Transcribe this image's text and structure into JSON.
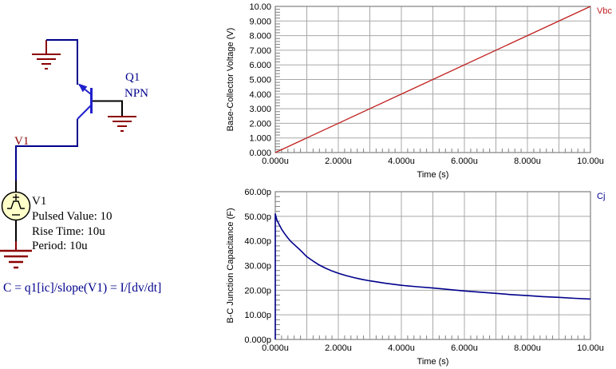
{
  "app": {
    "background": "#FFFFFF"
  },
  "schematic": {
    "transistor_ref": "Q1",
    "transistor_type": "NPN",
    "wire_label": "V1",
    "source_name": "V1",
    "source_param_1": "Pulsed Value: 10",
    "source_param_2": "Rise Time: 10u",
    "source_param_3": "Period: 10u",
    "formula": "C = q1[ic]/slope(V1) = I/[dv/dt]",
    "colors": {
      "wire": "#00008B",
      "device": "#2121CC",
      "ground": "#8B0000",
      "source_fill": "#FFFFC9",
      "designator_text": "#00008B",
      "wire_label_text": "#8B0000",
      "param_text": "#000000"
    }
  },
  "chart_data": [
    {
      "type": "line",
      "title": "",
      "xlabel": "Time (s)",
      "ylabel": "Base-Collector Voltage (V)",
      "x_unit": "us",
      "y_unit": "V",
      "xlim": [
        0,
        10
      ],
      "ylim": [
        0,
        10
      ],
      "x_tick_values": [
        0,
        2,
        4,
        6,
        8,
        10
      ],
      "x_tick_labels": [
        "0.000u",
        "2.000u",
        "4.000u",
        "6.000u",
        "8.000u",
        "10.00u"
      ],
      "y_tick_values": [
        0,
        1,
        2,
        3,
        4,
        5,
        6,
        7,
        8,
        9,
        10
      ],
      "y_tick_labels": [
        "0.000",
        "1.000",
        "2.000",
        "3.000",
        "4.000",
        "5.000",
        "6.000",
        "7.000",
        "8.000",
        "9.000",
        "10.00"
      ],
      "grid": true,
      "grid_x_step": 1,
      "grid_y_step": 1,
      "minor_x_step": 0.2,
      "minor_y_step": 0.2,
      "legend_position": "top-right-outside",
      "legend": [
        {
          "label": "Vbc",
          "color": "#C02020"
        }
      ],
      "series": [
        {
          "name": "Vbc",
          "color": "#C02020",
          "points": [
            [
              0,
              0
            ],
            [
              10,
              10
            ]
          ]
        }
      ]
    },
    {
      "type": "line",
      "title": "",
      "xlabel": "Time (s)",
      "ylabel": "B-C Junction Capacitance (F)",
      "x_unit": "us",
      "y_unit": "pF",
      "xlim": [
        0,
        10
      ],
      "ylim": [
        0,
        60
      ],
      "x_tick_values": [
        0,
        2,
        4,
        6,
        8,
        10
      ],
      "x_tick_labels": [
        "0.000u",
        "2.000u",
        "4.000u",
        "6.000u",
        "8.000u",
        "10.00u"
      ],
      "y_tick_values": [
        0,
        10,
        20,
        30,
        40,
        50,
        60
      ],
      "y_tick_labels": [
        "0.000p",
        "10.00p",
        "20.00p",
        "30.00p",
        "40.00p",
        "50.00p",
        "60.00p"
      ],
      "grid": true,
      "grid_x_step": 1,
      "grid_y_step": 10,
      "minor_x_step": 0.2,
      "minor_y_step": 2,
      "legend_position": "top-right-outside",
      "legend": [
        {
          "label": "Cj",
          "color": "#00008B"
        }
      ],
      "series": [
        {
          "name": "Cj",
          "color": "#00008B",
          "points": [
            [
              0,
              0
            ],
            [
              0,
              51
            ],
            [
              0.05,
              48.5
            ],
            [
              0.1,
              47.2
            ],
            [
              0.2,
              44.8
            ],
            [
              0.3,
              42.9
            ],
            [
              0.4,
              41.2
            ],
            [
              0.5,
              39.7
            ],
            [
              0.65,
              37.9
            ],
            [
              0.8,
              36.2
            ],
            [
              1.0,
              33.6
            ],
            [
              1.2,
              31.8
            ],
            [
              1.4,
              30.2
            ],
            [
              1.6,
              28.9
            ],
            [
              1.8,
              27.8
            ],
            [
              2.0,
              26.9
            ],
            [
              2.25,
              25.9
            ],
            [
              2.5,
              25.1
            ],
            [
              2.75,
              24.4
            ],
            [
              3.0,
              23.8
            ],
            [
              3.5,
              22.8
            ],
            [
              4.0,
              22.0
            ],
            [
              4.5,
              21.4
            ],
            [
              5.0,
              20.9
            ],
            [
              5.5,
              20.3
            ],
            [
              6.0,
              19.7
            ],
            [
              6.5,
              19.2
            ],
            [
              7.0,
              18.7
            ],
            [
              7.5,
              18.2
            ],
            [
              8.0,
              17.8
            ],
            [
              8.5,
              17.4
            ],
            [
              9.0,
              17.1
            ],
            [
              9.5,
              16.7
            ],
            [
              10.0,
              16.4
            ]
          ]
        }
      ]
    }
  ]
}
